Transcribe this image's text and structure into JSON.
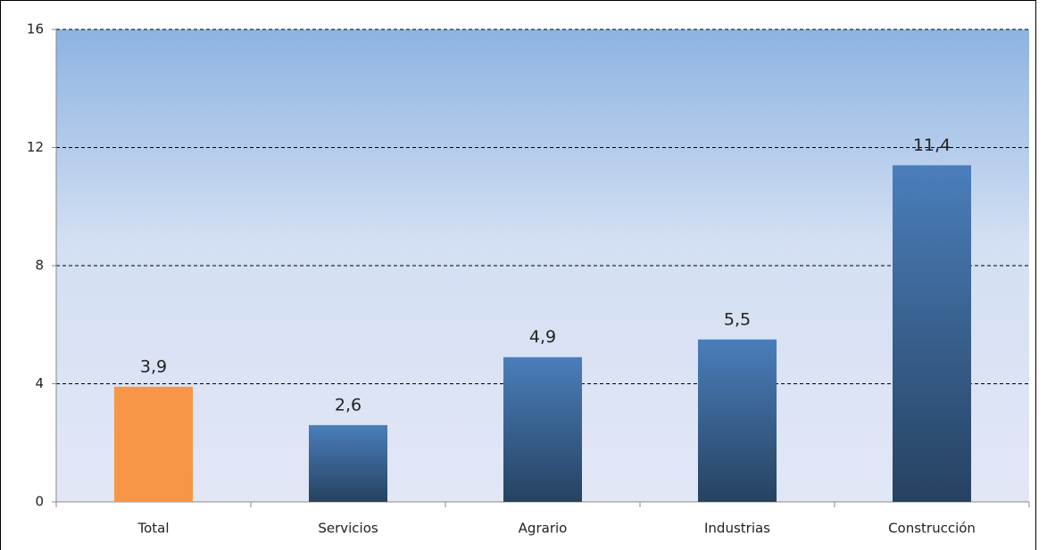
{
  "chart_data": {
    "type": "bar",
    "categories": [
      "Total",
      "Servicios",
      "Agrario",
      "Industrias",
      "Construcción"
    ],
    "values": [
      3.9,
      2.6,
      4.9,
      5.5,
      11.4
    ],
    "value_labels": [
      "3,9",
      "2,6",
      "4,9",
      "5,5",
      "11,4"
    ],
    "colors": [
      "#f79646",
      "#4a7ebb",
      "#4a7ebb",
      "#4a7ebb",
      "#4a7ebb"
    ],
    "ylim": [
      0,
      16
    ],
    "yticks": [
      0,
      4,
      8,
      12,
      16
    ],
    "grid": true
  }
}
